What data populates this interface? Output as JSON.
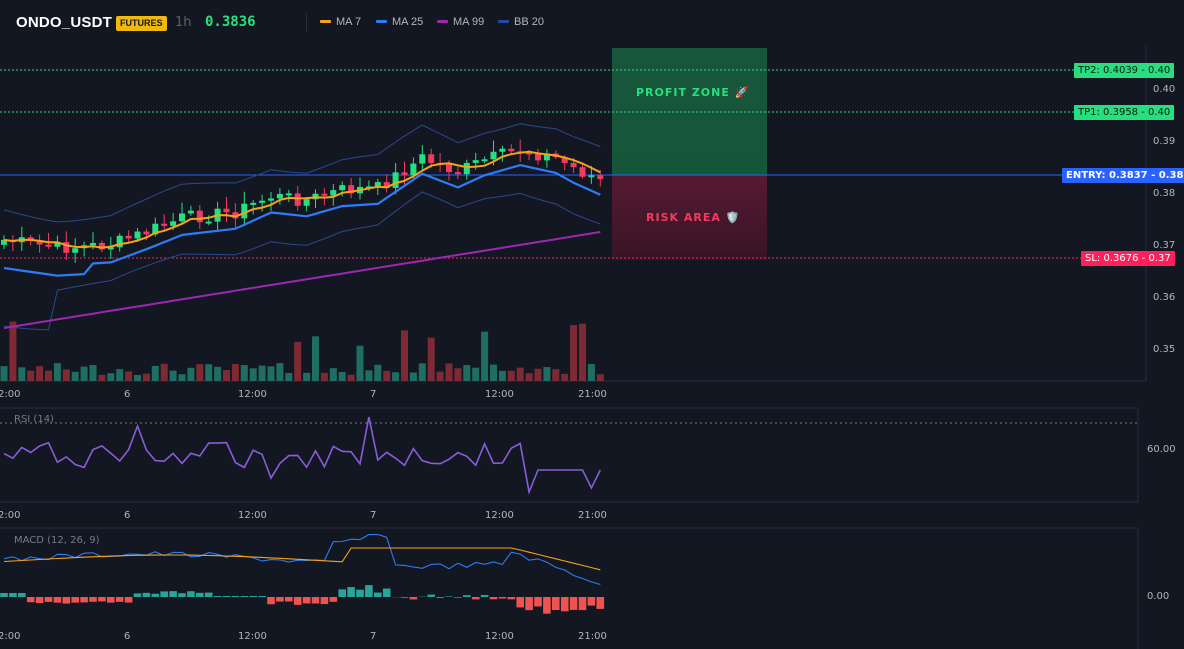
{
  "header": {
    "symbol": "ONDO_USDT",
    "badge": "FUTURES",
    "timeframe": "1h",
    "price": "0.3836",
    "legends": [
      {
        "label": "MA 7",
        "color": "#f7a21b"
      },
      {
        "label": "MA 25",
        "color": "#2e7cf6"
      },
      {
        "label": "MA 99",
        "color": "#9c27b0"
      },
      {
        "label": "BB 20",
        "color": "#1e4ba8"
      }
    ]
  },
  "price_axis": {
    "labels": [
      "0.40",
      "0.39",
      "0.38",
      "0.37",
      "0.36",
      "0.35"
    ]
  },
  "time_axis": {
    "labels": [
      "2:00",
      "6",
      "12:00",
      "7",
      "12:00",
      "21:00"
    ]
  },
  "levels": {
    "tp2": {
      "label": "TP2: 0.4039",
      "axis_value": "0.40",
      "color": "#26e07f"
    },
    "tp1": {
      "label": "TP1: 0.3958",
      "axis_value": "0.40",
      "color": "#26e07f"
    },
    "entry": {
      "label": "ENTRY: 0.3837",
      "axis_value": "0.38",
      "color": "#2962ff"
    },
    "sl": {
      "label": "SL: 0.3676",
      "axis_value": "0.37",
      "color": "#ff1f5a"
    }
  },
  "zones": {
    "profit": "PROFIT ZONE 🚀",
    "risk": "RISK AREA 🛡️"
  },
  "rsi": {
    "title": "RSI (14)",
    "axis_label": "60.00"
  },
  "macd": {
    "title": "MACD (12, 26, 9)",
    "axis_label": "0.00"
  },
  "colors": {
    "up": "#26e07f",
    "down": "#f23b5f",
    "vol_up": "#1f6e63",
    "vol_down": "#7d2a35",
    "bg": "#131722"
  }
}
